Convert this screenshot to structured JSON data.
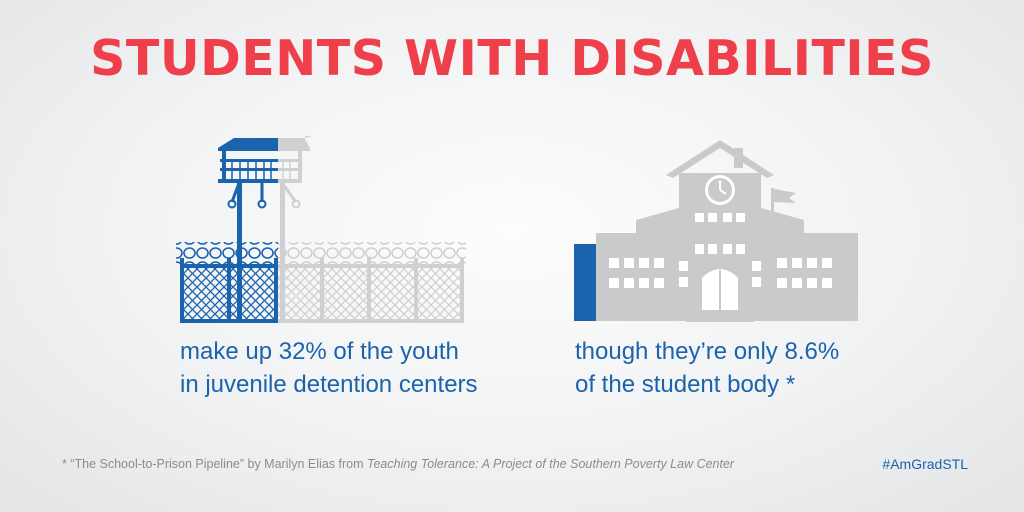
{
  "title": "STUDENTS WITH DISABILITIES",
  "left_stat": {
    "line1": "make up 32% of the youth",
    "line2": "in juvenile detention centers",
    "percent": 32
  },
  "right_stat": {
    "line1": "though they’re only 8.6%",
    "line2": "of the student body *",
    "percent": 8.6
  },
  "footnote": {
    "prefix": "* “The School-to-Prison Pipeline” by Marilyn Elias from ",
    "source_italic": "Teaching Tolerance: A Project of the Southern Poverty Law Center"
  },
  "hashtag": "#AmGradSTL",
  "icons": {
    "left": "prison-watchtower-fence-icon",
    "right": "school-building-icon"
  },
  "colors": {
    "title_red": "#ee3f4b",
    "accent_blue": "#1b63ad",
    "icon_gray": "#c9cacc",
    "footnote_gray": "#8a8c8f"
  }
}
